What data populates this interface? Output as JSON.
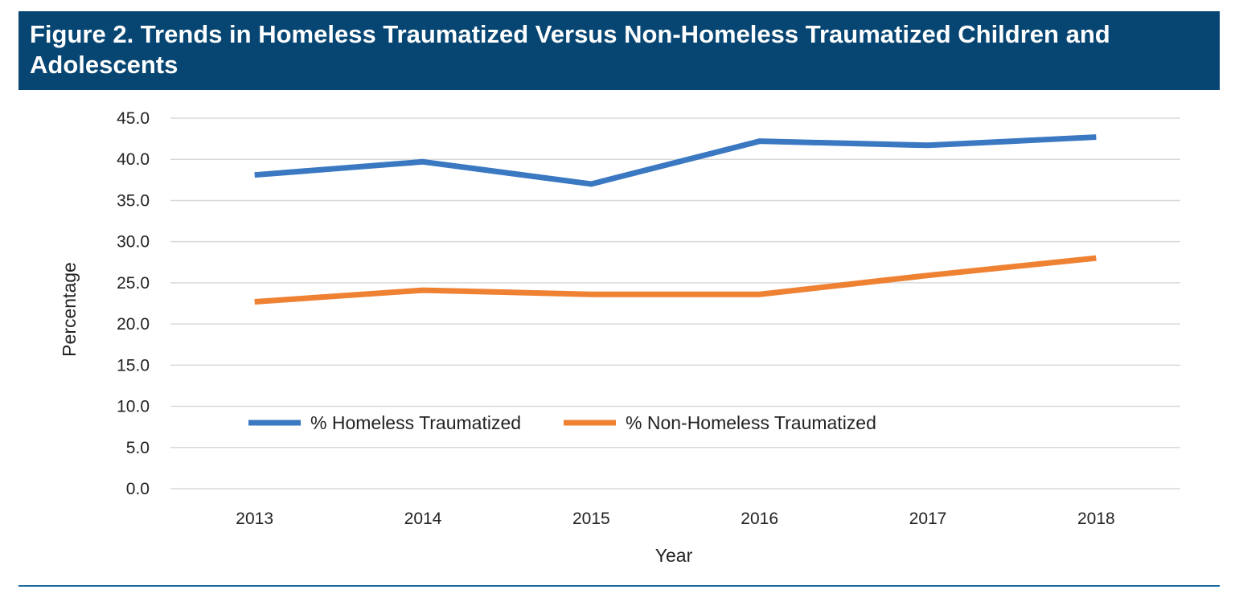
{
  "figure": {
    "title": "Figure 2. Trends in Homeless Traumatized Versus Non-Homeless Traumatized Children and Adolescents"
  },
  "colors": {
    "title_background": "#074673",
    "title_text": "#ffffff",
    "grid": "#d9d9d9",
    "rule": "#1a6aa0"
  },
  "chart_data": {
    "type": "line",
    "title": "",
    "xlabel": "Year",
    "ylabel": "Percentage",
    "categories": [
      "2013",
      "2014",
      "2015",
      "2016",
      "2017",
      "2018"
    ],
    "ylim": [
      0,
      45
    ],
    "yticks": [
      "0.0",
      "5.0",
      "10.0",
      "15.0",
      "20.0",
      "25.0",
      "30.0",
      "35.0",
      "40.0",
      "45.0"
    ],
    "grid": true,
    "legend_position": "bottom-center (inside plot)",
    "series": [
      {
        "name": "% Homeless Traumatized",
        "color": "#3a78c2",
        "values": [
          38.1,
          39.7,
          37.0,
          42.2,
          41.7,
          42.7
        ]
      },
      {
        "name": "% Non-Homeless Traumatized",
        "color": "#ef8133",
        "values": [
          22.7,
          24.1,
          23.6,
          23.6,
          25.9,
          28.0
        ]
      }
    ]
  }
}
